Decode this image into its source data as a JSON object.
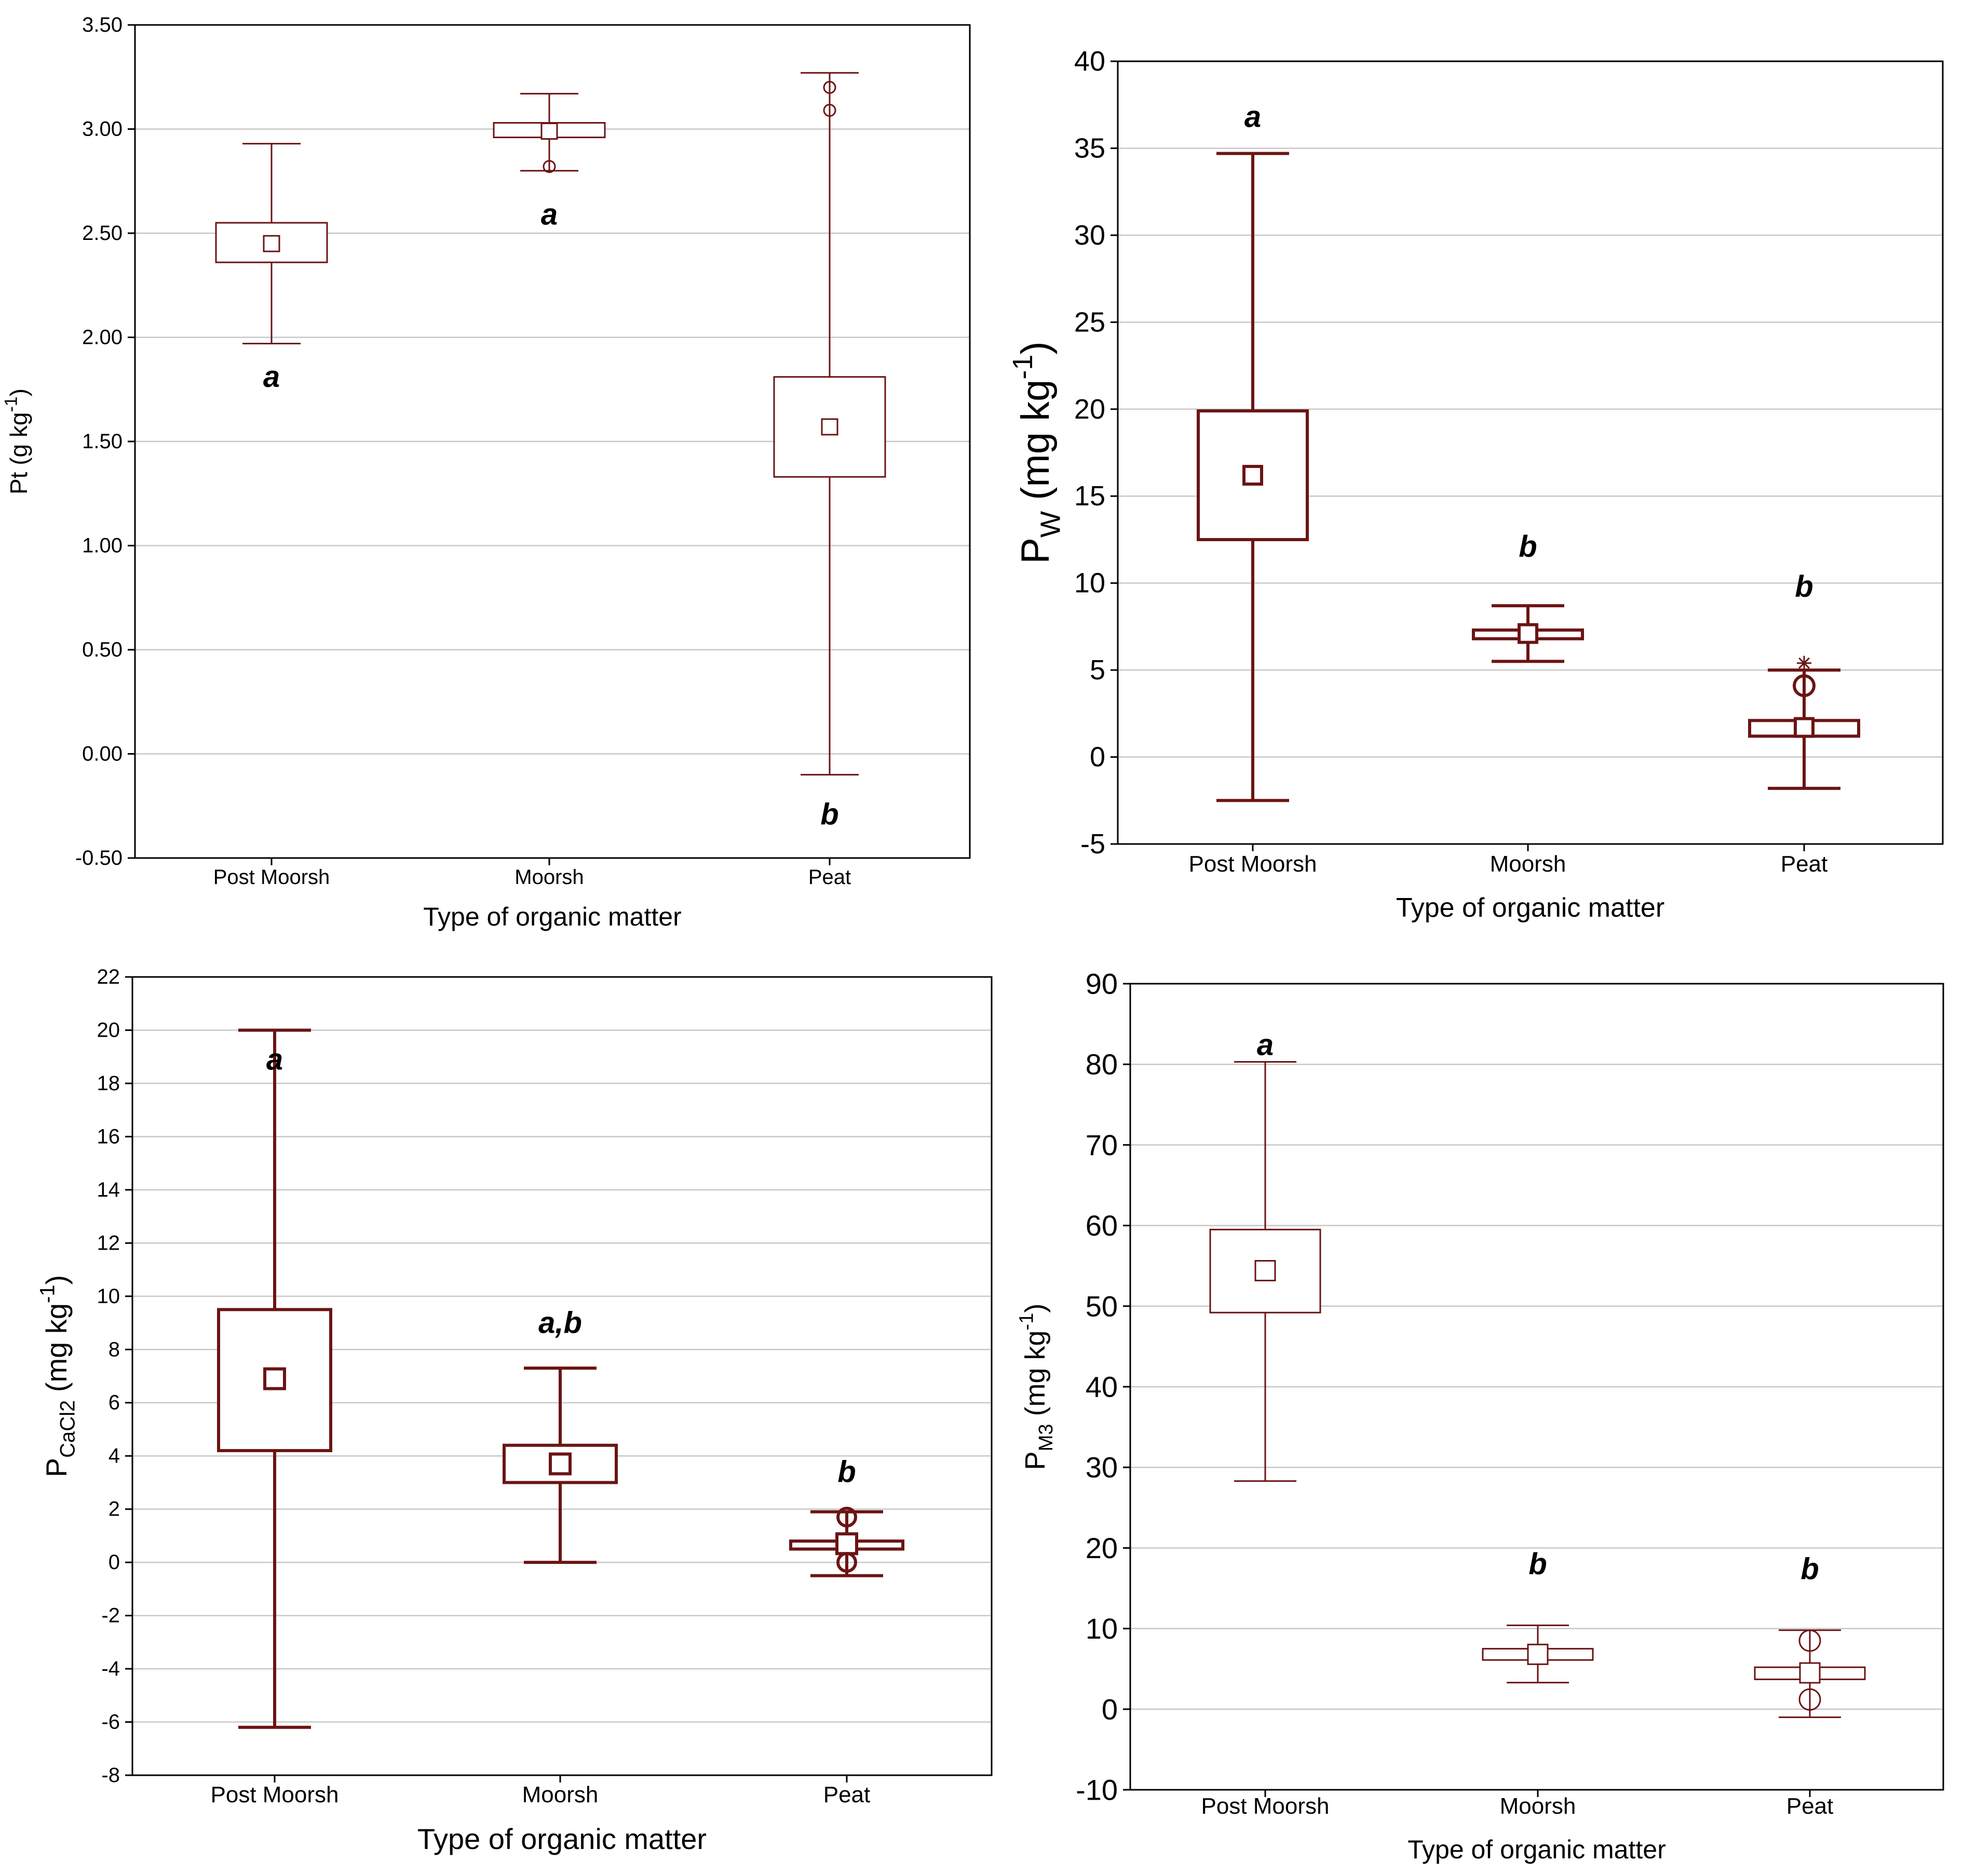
{
  "chart_data": [
    {
      "type": "box",
      "xlabel": "Type of organic matter",
      "ylabel": {
        "main": "Pt (g kg",
        "sup": "-1",
        "tail": ")"
      },
      "ylim": [
        -0.5,
        3.5
      ],
      "yticks": [
        -0.5,
        0,
        0.5,
        1,
        1.5,
        2,
        2.5,
        3,
        3.5
      ],
      "ytick_labels": [
        "-0.50",
        "0.00",
        "0.50",
        "1.00",
        "1.50",
        "2.00",
        "2.50",
        "3.00",
        "3.50"
      ],
      "grid": true,
      "categories": [
        "Post Moorsh",
        "Moorsh",
        "Peat"
      ],
      "boxes": [
        {
          "category": "Post Moorsh",
          "center": 2.45,
          "box_low": 2.36,
          "box_high": 2.55,
          "whisker_low": 1.97,
          "whisker_high": 2.93,
          "outliers": [],
          "extremes": [],
          "letter": "a",
          "letter_y": 1.81
        },
        {
          "category": "Moorsh",
          "center": 2.99,
          "box_low": 2.96,
          "box_high": 3.03,
          "whisker_low": 2.8,
          "whisker_high": 3.17,
          "outliers": [
            2.82
          ],
          "extremes": [],
          "letter": "a",
          "letter_y": 2.59
        },
        {
          "category": "Peat",
          "center": 1.57,
          "box_low": 1.33,
          "box_high": 1.81,
          "whisker_low": -0.1,
          "whisker_high": 3.27,
          "outliers": [
            3.2,
            3.09
          ],
          "extremes": [],
          "letter": "b",
          "letter_y": -0.29
        }
      ]
    },
    {
      "type": "box",
      "xlabel": "Type of organic matter",
      "ylabel": {
        "main": "P",
        "sub": "W",
        "mid": " (mg kg",
        "sup": "-1",
        "tail": ")"
      },
      "ylim": [
        -5,
        40
      ],
      "yticks": [
        -5,
        0,
        5,
        10,
        15,
        20,
        25,
        30,
        35,
        40
      ],
      "ytick_labels": [
        "-5",
        "0",
        "5",
        "10",
        "15",
        "20",
        "25",
        "30",
        "35",
        "40"
      ],
      "grid": true,
      "categories": [
        "Post Moorsh",
        "Moorsh",
        "Peat"
      ],
      "boxes": [
        {
          "category": "Post Moorsh",
          "center": 16.2,
          "box_low": 12.5,
          "box_high": 19.9,
          "whisker_low": -2.5,
          "whisker_high": 34.7,
          "outliers": [],
          "extremes": [],
          "letter": "a",
          "letter_y": 36.8
        },
        {
          "category": "Moorsh",
          "center": 7.1,
          "box_low": 6.8,
          "box_high": 7.3,
          "whisker_low": 5.5,
          "whisker_high": 8.7,
          "outliers": [],
          "extremes": [],
          "letter": "b",
          "letter_y": 12.1
        },
        {
          "category": "Peat",
          "center": 1.7,
          "box_low": 1.2,
          "box_high": 2.1,
          "whisker_low": -1.8,
          "whisker_high": 5.0,
          "outliers": [
            4.1
          ],
          "extremes": [
            5.4
          ],
          "letter": "b",
          "letter_y": 9.8
        }
      ]
    },
    {
      "type": "box",
      "xlabel": "Type of organic matter",
      "ylabel": {
        "main": "P",
        "sub": "CaCl2",
        "mid": "  (mg kg",
        "sup": "-1",
        "tail": ")"
      },
      "ylim": [
        -8,
        22
      ],
      "yticks": [
        -8,
        -6,
        -4,
        -2,
        0,
        2,
        4,
        6,
        8,
        10,
        12,
        14,
        16,
        18,
        20,
        22
      ],
      "ytick_labels": [
        "-8",
        "-6",
        "-4",
        "-2",
        "0",
        "2",
        "4",
        "6",
        "8",
        "10",
        "12",
        "14",
        "16",
        "18",
        "20",
        "22"
      ],
      "grid": true,
      "categories": [
        "Post Moorsh",
        "Moorsh",
        "Peat"
      ],
      "boxes": [
        {
          "category": "Post Moorsh",
          "center": 6.9,
          "box_low": 4.2,
          "box_high": 9.5,
          "whisker_low": -6.2,
          "whisker_high": 20.0,
          "outliers": [],
          "extremes": [],
          "letter": "a",
          "letter_y": 18.9
        },
        {
          "category": "Moorsh",
          "center": 3.7,
          "box_low": 3.0,
          "box_high": 4.4,
          "whisker_low": 0.0,
          "whisker_high": 7.3,
          "outliers": [],
          "extremes": [],
          "letter": "a,b",
          "letter_y": 9.0
        },
        {
          "category": "Peat",
          "center": 0.7,
          "box_low": 0.5,
          "box_high": 0.8,
          "whisker_low": -0.5,
          "whisker_high": 1.9,
          "outliers": [
            1.7,
            0.0
          ],
          "extremes": [],
          "letter": "b",
          "letter_y": 3.4
        }
      ]
    },
    {
      "type": "box",
      "xlabel": "Type of organic matter",
      "ylabel": {
        "main": "P",
        "sub": "M3",
        "mid": " (mg kg",
        "sup": "-1",
        "tail": ")"
      },
      "ylim": [
        -10,
        90
      ],
      "yticks": [
        -10,
        0,
        10,
        20,
        30,
        40,
        50,
        60,
        70,
        80,
        90
      ],
      "ytick_labels": [
        "-10",
        "0",
        "10",
        "20",
        "30",
        "40",
        "50",
        "60",
        "70",
        "80",
        "90"
      ],
      "grid": true,
      "categories": [
        "Post Moorsh",
        "Moorsh",
        "Peat"
      ],
      "boxes": [
        {
          "category": "Post Moorsh",
          "center": 54.4,
          "box_low": 49.2,
          "box_high": 59.5,
          "whisker_low": 28.3,
          "whisker_high": 80.3,
          "outliers": [],
          "extremes": [],
          "letter": "a",
          "letter_y": 82.4
        },
        {
          "category": "Moorsh",
          "center": 6.8,
          "box_low": 6.1,
          "box_high": 7.5,
          "whisker_low": 3.3,
          "whisker_high": 10.4,
          "outliers": [],
          "extremes": [],
          "letter": "b",
          "letter_y": 18.0
        },
        {
          "category": "Peat",
          "center": 4.5,
          "box_low": 3.7,
          "box_high": 5.2,
          "whisker_low": -1.0,
          "whisker_high": 9.8,
          "outliers": [
            8.5,
            1.2
          ],
          "extremes": [],
          "letter": "b",
          "letter_y": 17.4
        }
      ]
    }
  ],
  "colors": {
    "box": "#6b1414",
    "grid": "#c8c8c8",
    "axis": "#000000",
    "text": "#000000"
  }
}
